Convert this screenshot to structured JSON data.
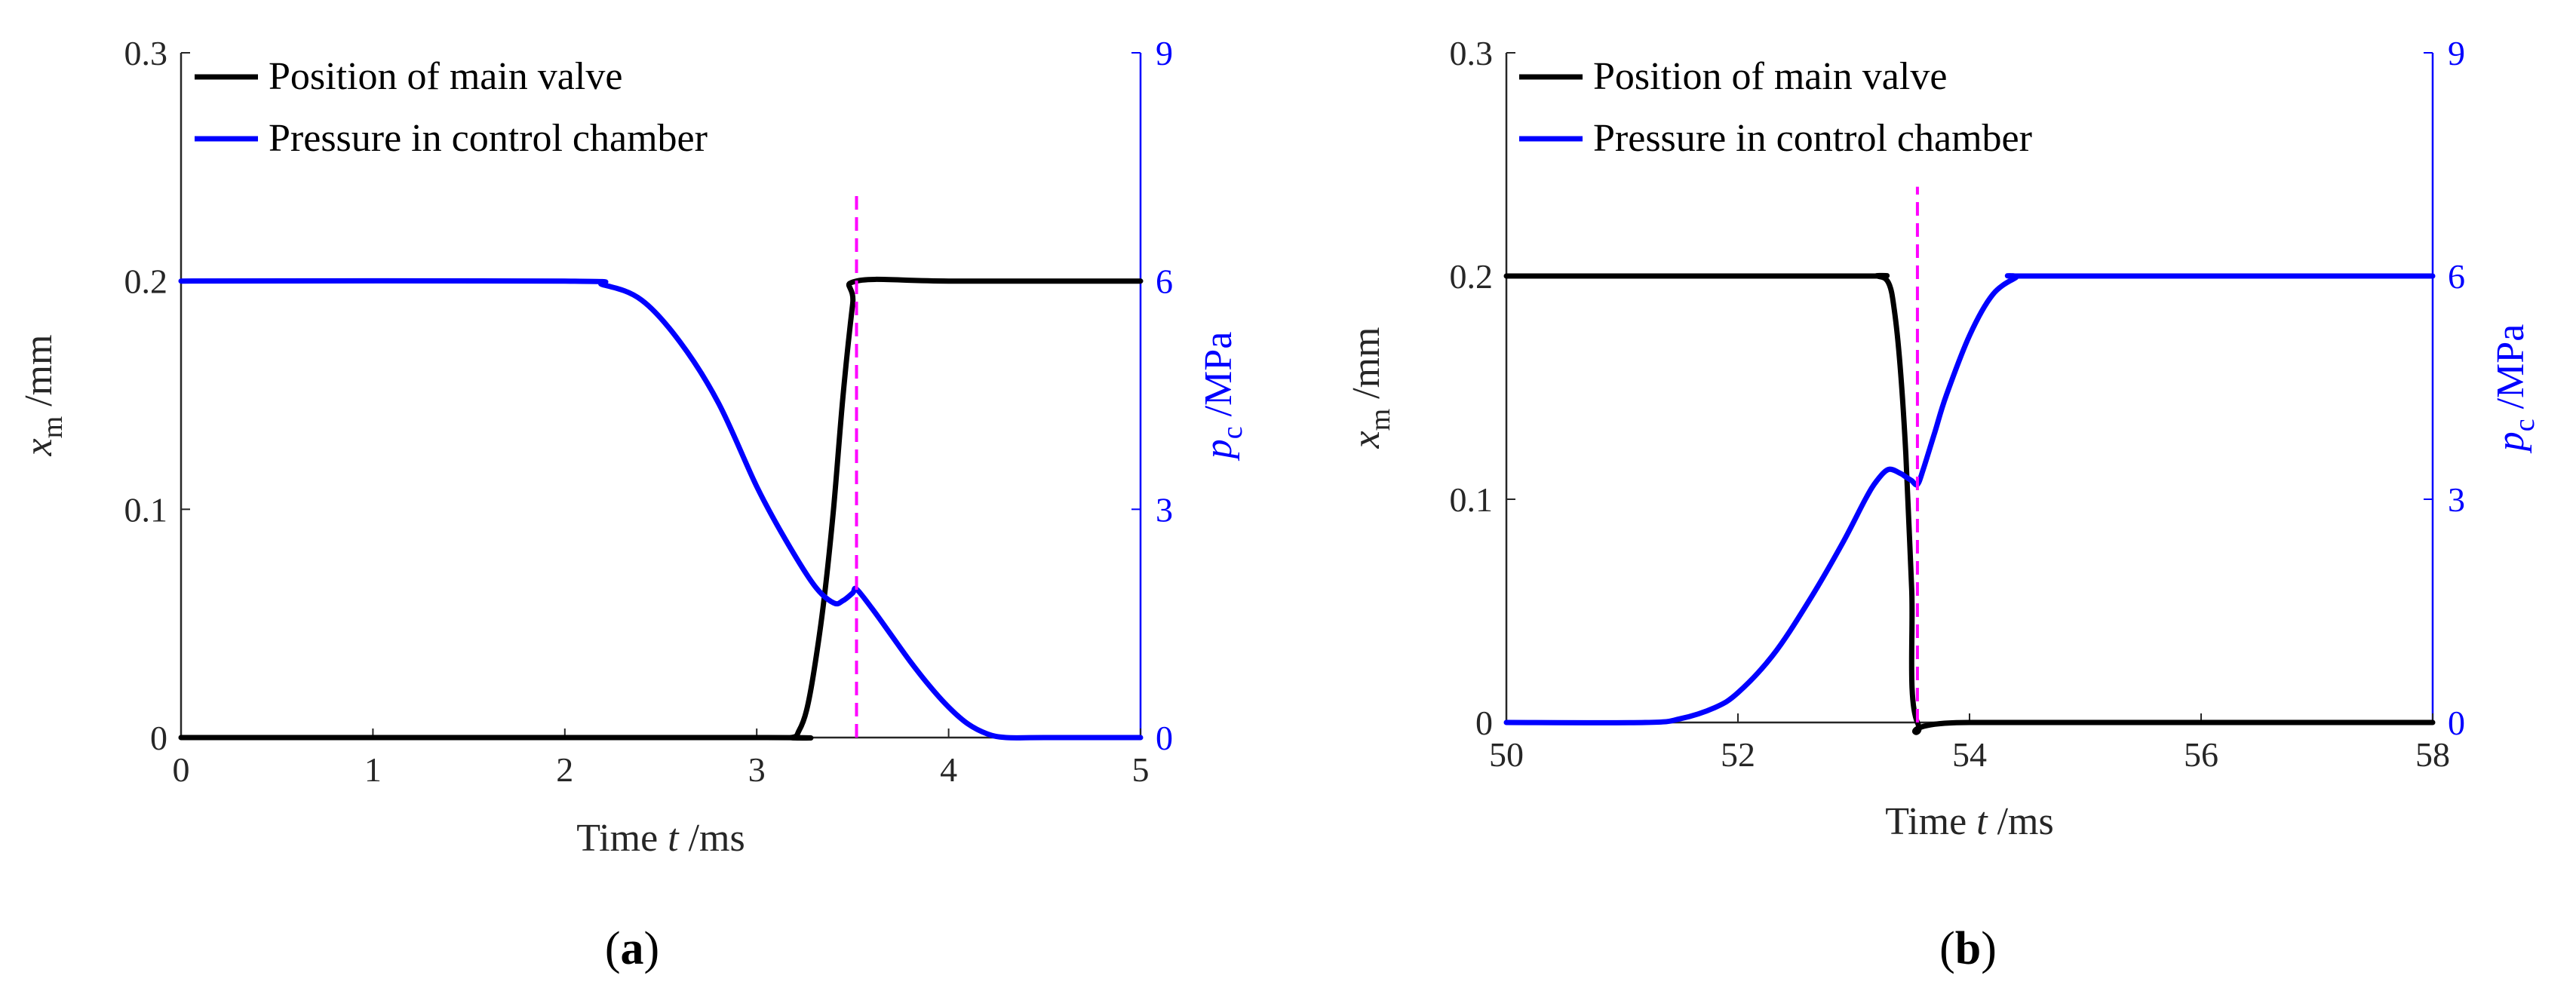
{
  "chart_data": [
    {
      "type": "line",
      "panel_label": "(a)",
      "xlabel": "Time t /ms",
      "ylabel": "x_m /mm",
      "ylabel_right": "p_c /MPa",
      "xlim": [
        0,
        5
      ],
      "ylim": [
        0,
        0.3
      ],
      "ylim_right": [
        0,
        9
      ],
      "xticks": [
        0,
        1,
        2,
        3,
        4,
        5
      ],
      "yticks": [
        0,
        0.1,
        0.2,
        0.3
      ],
      "yticks_right": [
        0,
        3,
        6,
        9
      ],
      "xtick_labels": [
        "0",
        "1",
        "2",
        "3",
        "4",
        "5"
      ],
      "ytick_labels": [
        "0",
        "0.1",
        "0.2",
        "0.3"
      ],
      "ytick_labels_right": [
        "0",
        "3",
        "6",
        "9"
      ],
      "legend": [
        "Position of main valve",
        "Pressure in control chamber"
      ],
      "legend_location": "top-left",
      "vline": {
        "x": 3.52,
        "y_from": 0,
        "y_to": 0.24,
        "color": "#ff00ff",
        "style": "dashed"
      },
      "series": [
        {
          "name": "Position of main valve",
          "axis": "left",
          "color": "#000000",
          "x": [
            0,
            3.0,
            3.18,
            3.22,
            3.26,
            3.3,
            3.35,
            3.4,
            3.45,
            3.5,
            3.52,
            4.0,
            5.0
          ],
          "y": [
            0,
            0,
            0,
            0.003,
            0.012,
            0.03,
            0.06,
            0.1,
            0.15,
            0.19,
            0.2,
            0.2,
            0.2
          ]
        },
        {
          "name": "Pressure in control chamber",
          "axis": "right",
          "color": "#0000ff",
          "x": [
            0,
            2.0,
            2.2,
            2.4,
            2.6,
            2.8,
            3.0,
            3.15,
            3.3,
            3.4,
            3.45,
            3.5,
            3.52,
            3.6,
            3.7,
            3.8,
            3.9,
            4.0,
            4.1,
            4.2,
            4.3,
            4.5,
            5.0
          ],
          "y": [
            6,
            6,
            5.95,
            5.75,
            5.2,
            4.4,
            3.3,
            2.6,
            2.0,
            1.77,
            1.8,
            1.9,
            1.95,
            1.7,
            1.35,
            1.0,
            0.68,
            0.4,
            0.18,
            0.05,
            0,
            0,
            0
          ]
        }
      ]
    },
    {
      "type": "line",
      "panel_label": "(b)",
      "xlabel": "Time t /ms",
      "ylabel": "x_m /mm",
      "ylabel_right": "p_c /MPa",
      "xlim": [
        50,
        58
      ],
      "ylim": [
        0,
        0.3
      ],
      "ylim_right": [
        0,
        9
      ],
      "xticks": [
        50,
        52,
        54,
        56,
        58
      ],
      "yticks": [
        0,
        0.1,
        0.2,
        0.3
      ],
      "yticks_right": [
        0,
        3,
        6,
        9
      ],
      "xtick_labels": [
        "50",
        "52",
        "54",
        "56",
        "58"
      ],
      "ytick_labels": [
        "0",
        "0.1",
        "0.2",
        "0.3"
      ],
      "ytick_labels_right": [
        "0",
        "3",
        "6",
        "9"
      ],
      "legend": [
        "Position of main valve",
        "Pressure in control chamber"
      ],
      "legend_location": "top-left",
      "vline": {
        "x": 53.55,
        "y_from": 0,
        "y_to": 0.24,
        "color": "#ff00ff",
        "style": "dashed"
      },
      "series": [
        {
          "name": "Position of main valve",
          "axis": "left",
          "color": "#000000",
          "x": [
            50,
            53.0,
            53.2,
            53.3,
            53.35,
            53.4,
            53.45,
            53.5,
            53.55,
            54.0,
            58.0
          ],
          "y": [
            0.2,
            0.2,
            0.2,
            0.197,
            0.185,
            0.16,
            0.12,
            0.06,
            0,
            0,
            0
          ]
        },
        {
          "name": "Pressure in control chamber",
          "axis": "right",
          "color": "#0000ff",
          "x": [
            50,
            51.2,
            51.5,
            51.8,
            52.0,
            52.3,
            52.6,
            52.9,
            53.1,
            53.2,
            53.3,
            53.4,
            53.45,
            53.5,
            53.55,
            53.6,
            53.7,
            53.8,
            54.0,
            54.2,
            54.4,
            54.45,
            56.0,
            58.0
          ],
          "y": [
            0,
            0,
            0.05,
            0.2,
            0.4,
            0.9,
            1.6,
            2.4,
            3.0,
            3.25,
            3.4,
            3.35,
            3.3,
            3.25,
            3.2,
            3.4,
            3.9,
            4.4,
            5.2,
            5.75,
            5.98,
            6,
            6,
            6
          ]
        }
      ]
    }
  ]
}
